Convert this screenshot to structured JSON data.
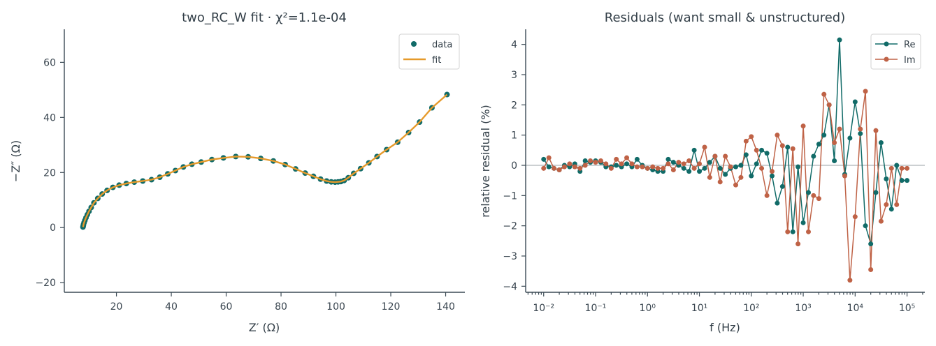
{
  "figure": {
    "left": {
      "title": "two_RC_W fit  ·  χ²=1.1e-04",
      "xlabel": "Z′ (Ω)",
      "ylabel": "−Z″ (Ω)",
      "legend": [
        "data",
        "fit"
      ]
    },
    "right": {
      "title": "Residuals (want small & unstructured)",
      "xlabel": "f (Hz)",
      "ylabel": "relative residual (%)",
      "legend": [
        "Re",
        "Im"
      ]
    }
  },
  "colors": {
    "data": "#116b68",
    "fit": "#e69a2b",
    "re": "#116b68",
    "im": "#bf6246",
    "axis": "#3b4a55"
  },
  "chart_data": [
    {
      "type": "scatter",
      "title": "two_RC_W fit  ·  χ²=1.1e-04",
      "xlabel": "Z′ (Ω)",
      "ylabel": "−Z″ (Ω)",
      "xlim": [
        1,
        147
      ],
      "ylim": [
        -23.5,
        72
      ],
      "xticks": [
        20,
        40,
        60,
        80,
        100,
        120,
        140
      ],
      "yticks": [
        -20,
        0,
        20,
        40,
        60
      ],
      "legend_position": "top-right",
      "grid": false,
      "series": [
        {
          "name": "data",
          "style": "markers",
          "x": [
            7.8,
            7.9,
            8.0,
            8.2,
            8.5,
            8.9,
            9.4,
            10.0,
            10.8,
            11.8,
            13.2,
            14.8,
            16.6,
            18.7,
            21.0,
            23.6,
            26.5,
            29.6,
            32.8,
            35.8,
            38.7,
            41.5,
            44.4,
            47.5,
            50.9,
            54.8,
            59.0,
            63.5,
            68.0,
            72.6,
            77.2,
            81.5,
            85.3,
            88.8,
            91.8,
            94.4,
            96.6,
            98.3,
            99.7,
            100.8,
            101.8,
            103.0,
            104.5,
            106.5,
            109.0,
            112.0,
            115.0,
            118.5,
            122.5,
            126.5,
            130.5,
            135.0,
            140.5
          ],
          "y": [
            0.2,
            0.6,
            1.1,
            1.8,
            2.6,
            3.6,
            4.7,
            5.9,
            7.3,
            9.0,
            10.6,
            12.2,
            13.5,
            14.6,
            15.4,
            16.0,
            16.5,
            16.9,
            17.4,
            18.3,
            19.5,
            20.7,
            22.0,
            23.0,
            23.8,
            24.7,
            25.3,
            25.8,
            25.7,
            25.1,
            24.2,
            22.9,
            21.3,
            19.8,
            18.6,
            17.6,
            16.9,
            16.6,
            16.5,
            16.6,
            16.7,
            17.1,
            18.1,
            19.7,
            21.4,
            23.5,
            25.8,
            28.3,
            31.0,
            34.5,
            38.3,
            43.5,
            48.3
          ]
        },
        {
          "name": "fit",
          "style": "line",
          "x": [
            7.8,
            7.9,
            8.0,
            8.2,
            8.5,
            8.9,
            9.4,
            10.0,
            10.8,
            11.8,
            13.2,
            14.8,
            16.6,
            18.7,
            21.0,
            23.6,
            26.5,
            29.6,
            32.8,
            35.8,
            38.7,
            41.5,
            44.4,
            47.5,
            50.9,
            54.8,
            59.0,
            63.5,
            68.0,
            72.6,
            77.2,
            81.5,
            85.3,
            88.8,
            91.8,
            94.4,
            96.6,
            98.3,
            99.7,
            100.8,
            101.8,
            103.0,
            104.5,
            106.5,
            109.0,
            112.0,
            115.0,
            118.5,
            122.5,
            126.5,
            130.5,
            135.0,
            140.5
          ],
          "y": [
            0.2,
            0.6,
            1.1,
            1.8,
            2.6,
            3.6,
            4.7,
            5.9,
            7.3,
            9.0,
            10.6,
            12.2,
            13.5,
            14.6,
            15.4,
            16.0,
            16.5,
            16.9,
            17.4,
            18.3,
            19.5,
            20.7,
            22.0,
            23.0,
            23.8,
            24.7,
            25.3,
            25.8,
            25.7,
            25.1,
            24.2,
            22.9,
            21.3,
            19.8,
            18.6,
            17.6,
            16.9,
            16.6,
            16.5,
            16.6,
            16.7,
            17.1,
            18.1,
            19.7,
            21.4,
            23.5,
            25.8,
            28.3,
            31.0,
            34.5,
            38.3,
            43.5,
            48.3
          ]
        }
      ]
    },
    {
      "type": "line",
      "title": "Residuals (want small & unstructured)",
      "xlabel": "f (Hz)",
      "ylabel": "relative residual (%)",
      "xscale": "log",
      "xlim": [
        0.0045,
        220000
      ],
      "ylim": [
        -4.2,
        4.5
      ],
      "xtick_labels": [
        "10⁻²",
        "10⁻¹",
        "10⁰",
        "10¹",
        "10²",
        "10³",
        "10⁴",
        "10⁵"
      ],
      "yticks": [
        -4,
        -3,
        -2,
        -1,
        0,
        1,
        2,
        3,
        4
      ],
      "reference_line_y": 0,
      "legend_position": "top-right",
      "grid": false,
      "x": [
        0.01,
        0.0126,
        0.0158,
        0.02,
        0.0251,
        0.0316,
        0.0398,
        0.0501,
        0.0631,
        0.0794,
        0.1,
        0.126,
        0.158,
        0.2,
        0.251,
        0.316,
        0.398,
        0.501,
        0.631,
        0.794,
        1,
        1.26,
        1.58,
        2,
        2.51,
        3.16,
        3.98,
        5.01,
        6.31,
        7.94,
        10,
        12.6,
        15.8,
        20,
        25.1,
        31.6,
        39.8,
        50.1,
        63.1,
        79.4,
        100,
        126,
        158,
        200,
        251,
        316,
        398,
        501,
        631,
        794,
        1000,
        1260,
        1580,
        2000,
        2510,
        3160,
        3980,
        5010,
        6310,
        7940,
        10000,
        12600,
        15800,
        20000,
        25100,
        31600,
        39800,
        50100,
        63100,
        79400,
        100000
      ],
      "series": [
        {
          "name": "Re",
          "values": [
            0.2,
            -0.05,
            -0.1,
            -0.15,
            0.0,
            -0.05,
            0.05,
            -0.2,
            0.15,
            0.1,
            0.15,
            0.1,
            -0.05,
            -0.05,
            0.0,
            -0.05,
            0.05,
            -0.05,
            0.2,
            0.0,
            -0.1,
            -0.15,
            -0.2,
            -0.2,
            0.2,
            0.1,
            0.0,
            -0.1,
            -0.2,
            0.5,
            -0.2,
            -0.1,
            0.1,
            0.3,
            -0.1,
            -0.3,
            -0.1,
            -0.05,
            0.0,
            0.35,
            -0.35,
            0.05,
            0.5,
            0.4,
            -0.35,
            -1.25,
            -0.7,
            0.6,
            -2.2,
            -0.05,
            -1.9,
            -0.9,
            0.3,
            0.7,
            1.0,
            2.0,
            0.15,
            4.15,
            -0.3,
            0.9,
            2.1,
            1.05,
            -2.0,
            -2.6,
            -0.9,
            0.75,
            -0.45,
            -1.45,
            0.0,
            -0.5,
            -0.5
          ]
        },
        {
          "name": "Im",
          "values": [
            -0.1,
            0.25,
            -0.1,
            -0.15,
            -0.05,
            0.05,
            -0.05,
            -0.1,
            0.0,
            0.15,
            0.1,
            0.15,
            0.05,
            -0.1,
            0.2,
            0.05,
            0.25,
            0.05,
            -0.05,
            -0.05,
            -0.1,
            -0.05,
            -0.1,
            -0.1,
            0.05,
            -0.15,
            0.1,
            0.05,
            0.15,
            -0.1,
            0.05,
            0.6,
            -0.4,
            0.3,
            -0.55,
            0.3,
            -0.05,
            -0.65,
            -0.4,
            0.8,
            0.95,
            0.5,
            -0.1,
            -1.0,
            -0.2,
            1.0,
            0.65,
            -2.2,
            0.55,
            -2.6,
            1.3,
            -2.2,
            -1.0,
            -1.1,
            2.35,
            2.0,
            0.75,
            1.2,
            -0.35,
            -3.8,
            -1.7,
            1.2,
            2.45,
            -3.45,
            1.15,
            -1.85,
            -1.3,
            -0.1,
            -1.3,
            -0.1,
            -0.1
          ]
        }
      ]
    }
  ]
}
